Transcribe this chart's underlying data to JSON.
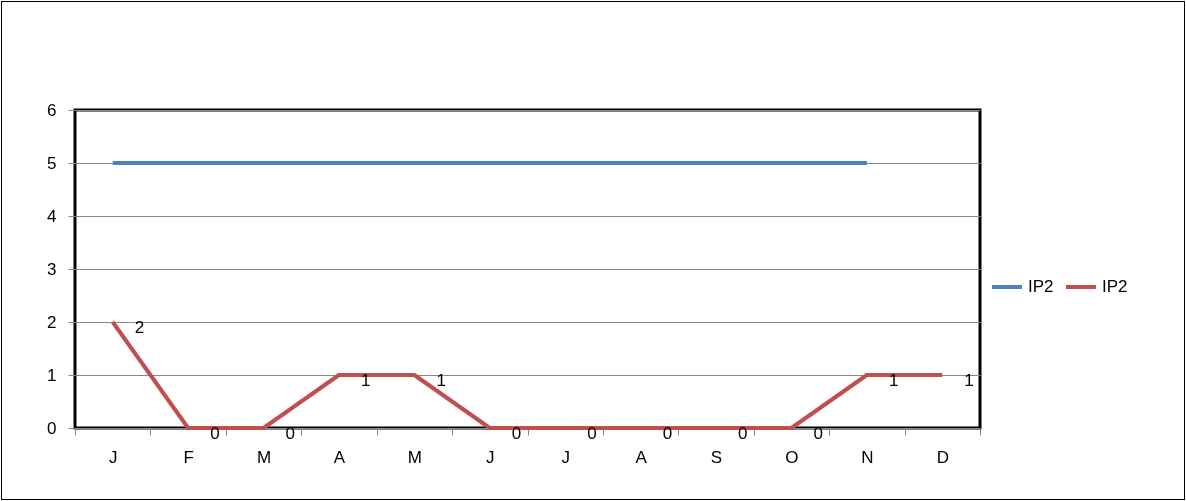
{
  "chart_data": {
    "type": "line",
    "categories": [
      "J",
      "F",
      "M",
      "A",
      "M",
      "J",
      "J",
      "A",
      "S",
      "O",
      "N",
      "D"
    ],
    "series": [
      {
        "name": "IP2",
        "color": "#4f81bd",
        "values": [
          5,
          5,
          5,
          5,
          5,
          5,
          5,
          5,
          5,
          5,
          5,
          null
        ]
      },
      {
        "name": "IP2",
        "color": "#c0504d",
        "values": [
          2,
          0,
          0,
          1,
          1,
          0,
          0,
          0,
          0,
          0,
          1,
          1
        ],
        "data_labels": true
      }
    ],
    "ylim": [
      0,
      6
    ],
    "yticks": [
      0,
      1,
      2,
      3,
      4,
      5,
      6
    ],
    "grid": "y",
    "legend": "right",
    "marker": "none",
    "line_style": "solid"
  }
}
